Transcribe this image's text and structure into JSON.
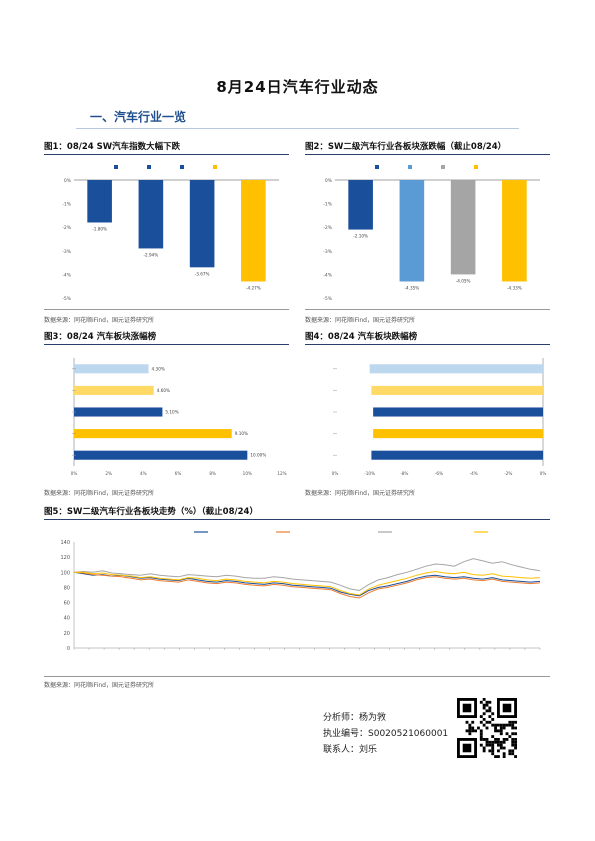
{
  "title": "8月24日汽车行业动态",
  "section": "一、汽车行业一览",
  "figures": [
    {
      "title": "图1：08/24   SW汽车指数大幅下跌",
      "source": "数据来源：同花顺iFind，国元证券研究所"
    },
    {
      "title": "图2：SW二级汽车行业各板块涨跌幅（截止08/24）",
      "source": "数据来源：同花顺iFind，国元证券研究所"
    },
    {
      "title": "图3：08/24   汽车板块涨幅榜",
      "source": "数据来源：同花顺iFind，国元证券研究所"
    },
    {
      "title": "图4：08/24   汽车板块跌幅榜",
      "source": ""
    },
    {
      "title": "图5：SW二级汽车行业各板块走势（%）（截止08/24）",
      "source": "数据来源：同花顺iFind，国元证券研究所"
    }
  ],
  "analyst": {
    "name_line": "分析师：杨为敩",
    "cert_line": "执业编号：S0020521060001",
    "contact_line": "联系人：刘乐"
  },
  "chart_data": [
    {
      "type": "bar",
      "categories": [
        "",
        "",
        "",
        ""
      ],
      "values": [
        -1.8,
        -2.9,
        -3.7,
        -4.3
      ],
      "data_labels": [
        "-1.80%",
        "-2.94%",
        "-3.67%",
        "-4.27%"
      ],
      "ylim": [
        -5,
        0
      ],
      "ytick_labels": [
        "0%",
        "-1%",
        "-2%",
        "-3%",
        "-4%",
        "-5%"
      ],
      "colors": [
        "#1a4f9c",
        "#1a4f9c",
        "#1a4f9c",
        "#ffc000"
      ]
    },
    {
      "type": "bar",
      "categories": [
        "",
        "",
        "",
        ""
      ],
      "values": [
        -2.1,
        -4.3,
        -4.0,
        -4.3
      ],
      "data_labels": [
        "-2.10%",
        "-4.35%",
        "-4.05%",
        "-4.33%"
      ],
      "ylim": [
        -5,
        0
      ],
      "ytick_labels": [
        "0%",
        "-1%",
        "-2%",
        "-3%",
        "-4%",
        "-5%"
      ],
      "colors": [
        "#1a4f9c",
        "#5b9bd5",
        "#a5a5a5",
        "#ffc000"
      ]
    },
    {
      "type": "bar",
      "orientation": "horizontal",
      "categories": [
        "",
        "",
        "",
        "",
        ""
      ],
      "values": [
        4.3,
        4.6,
        5.1,
        9.1,
        10.0
      ],
      "data_labels": [
        "4.30%",
        "4.60%",
        "5.10%",
        "9.10%",
        "10.00%"
      ],
      "xlim": [
        0,
        12
      ],
      "xtick_labels": [
        "0%",
        "2%",
        "4%",
        "6%",
        "8%",
        "10%",
        "12%"
      ],
      "colors": [
        "#bdd7ee",
        "#ffd966",
        "#1a4f9c",
        "#ffc000",
        "#1a4f9c"
      ]
    },
    {
      "type": "bar",
      "orientation": "horizontal",
      "categories": [
        "",
        "",
        "",
        "",
        ""
      ],
      "values": [
        -10.0,
        -9.9,
        -9.8,
        -9.8,
        -9.9
      ],
      "data_labels": [
        "",
        "",
        "",
        "",
        ""
      ],
      "xlim": [
        -12,
        0
      ],
      "xtick_labels": [
        "0%",
        "-10%",
        "-8%",
        "-6%",
        "-4%",
        "-2%",
        "0%"
      ],
      "colors": [
        "#bdd7ee",
        "#ffd966",
        "#1a4f9c",
        "#ffc000",
        "#1a4f9c"
      ]
    },
    {
      "type": "line",
      "ylim": [
        0,
        140
      ],
      "yticks": [
        0,
        20,
        40,
        60,
        80,
        100,
        120,
        140
      ],
      "xtick_labels": [
        "",
        "",
        "",
        "",
        "",
        "",
        "",
        "",
        "",
        "",
        "",
        "",
        "",
        "",
        "",
        "",
        "",
        "",
        "",
        "",
        "",
        "",
        "",
        "",
        "",
        "",
        "",
        "",
        "",
        "",
        "",
        ""
      ],
      "legend_placement": "top",
      "series": [
        {
          "name": "",
          "color": "#1a4f9c",
          "values": [
            100,
            98,
            96,
            97,
            95,
            96,
            94,
            92,
            93,
            91,
            90,
            89,
            92,
            90,
            88,
            87,
            89,
            88,
            86,
            85,
            84,
            86,
            85,
            83,
            82,
            81,
            80,
            79,
            74,
            71,
            69,
            76,
            80,
            82,
            85,
            88,
            92,
            95,
            96,
            94,
            93,
            94,
            92,
            91,
            93,
            90,
            89,
            88,
            87,
            88
          ]
        },
        {
          "name": "",
          "color": "#ed7d31",
          "values": [
            100,
            99,
            97,
            96,
            95,
            94,
            92,
            90,
            91,
            89,
            88,
            87,
            90,
            88,
            86,
            85,
            87,
            86,
            84,
            83,
            82,
            84,
            83,
            81,
            80,
            79,
            78,
            77,
            72,
            68,
            66,
            73,
            78,
            80,
            83,
            86,
            90,
            93,
            94,
            92,
            91,
            92,
            90,
            89,
            91,
            88,
            87,
            86,
            85,
            86
          ]
        },
        {
          "name": "",
          "color": "#a5a5a5",
          "values": [
            100,
            101,
            100,
            102,
            99,
            98,
            97,
            96,
            98,
            96,
            95,
            94,
            97,
            96,
            95,
            94,
            96,
            95,
            93,
            92,
            92,
            94,
            93,
            91,
            90,
            89,
            88,
            87,
            83,
            78,
            76,
            84,
            90,
            93,
            97,
            100,
            104,
            108,
            111,
            110,
            108,
            114,
            118,
            115,
            112,
            114,
            110,
            107,
            104,
            102
          ]
        },
        {
          "name": "",
          "color": "#ffc000",
          "values": [
            100,
            100,
            98,
            99,
            97,
            96,
            95,
            93,
            94,
            92,
            91,
            90,
            93,
            92,
            90,
            89,
            91,
            90,
            88,
            87,
            86,
            88,
            87,
            85,
            84,
            83,
            82,
            81,
            76,
            72,
            70,
            78,
            83,
            86,
            89,
            92,
            96,
            99,
            101,
            99,
            98,
            100,
            97,
            96,
            98,
            95,
            94,
            93,
            92,
            93
          ]
        }
      ]
    }
  ]
}
